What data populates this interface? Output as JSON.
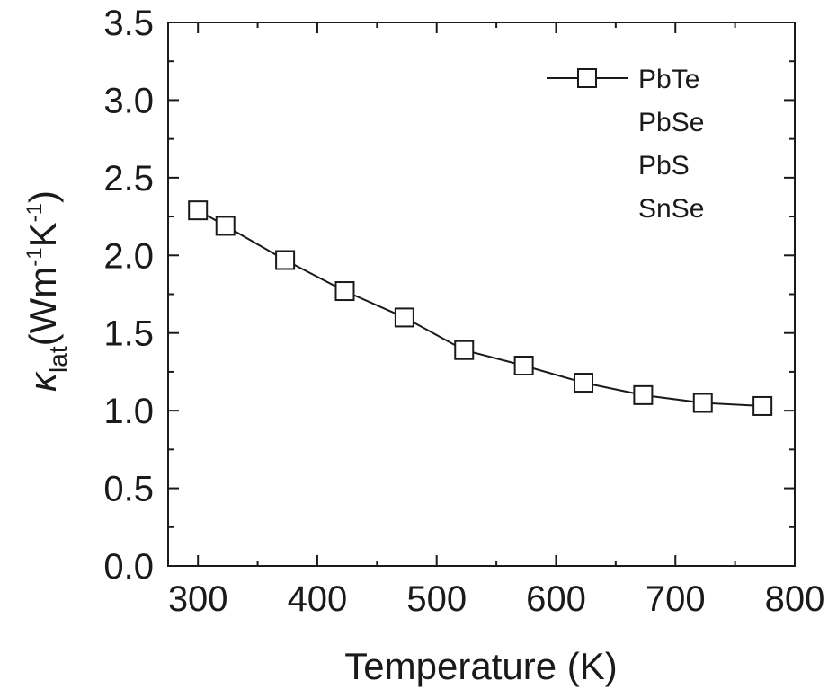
{
  "chart_data": {
    "type": "line",
    "title": "",
    "xlabel": "Temperature (K)",
    "ylabel": {
      "symbol": "κ",
      "subscript": "lat",
      "units_open": "(Wm",
      "exp1": "-1",
      "units_mid": "K",
      "exp2": "-1",
      "units_close": ")"
    },
    "xlim": [
      275,
      800
    ],
    "ylim": [
      0,
      3.5
    ],
    "xticks": [
      300,
      400,
      500,
      600,
      700,
      800
    ],
    "yticks": [
      "0.0",
      "0.5",
      "1.0",
      "1.5",
      "2.0",
      "2.5",
      "3.0",
      "3.5"
    ],
    "grid": false,
    "legend_position": "top-right",
    "legend": [
      "PbTe",
      "PbSe",
      "PbS",
      "SnSe"
    ],
    "series": [
      {
        "name": "PbTe",
        "marker": "open-square",
        "color": "#1a1a1a",
        "x": [
          300,
          323,
          373,
          423,
          473,
          523,
          573,
          623,
          673,
          723,
          773
        ],
        "y": [
          2.29,
          2.19,
          1.97,
          1.77,
          1.6,
          1.39,
          1.29,
          1.18,
          1.1,
          1.05,
          1.03
        ]
      }
    ]
  }
}
